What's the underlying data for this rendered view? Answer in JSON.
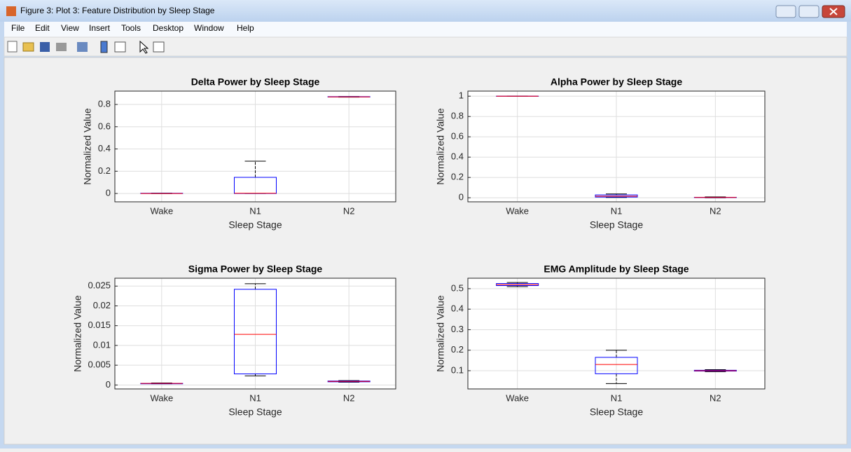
{
  "window": {
    "title": "Figure 3: Plot 3: Feature Distribution by Sleep Stage",
    "menu": [
      "File",
      "Edit",
      "View",
      "Insert",
      "Tools",
      "Desktop",
      "Window",
      "Help"
    ]
  },
  "chart_data": [
    {
      "type": "box",
      "title": "Delta Power by Sleep Stage",
      "xlabel": "Sleep Stage",
      "ylabel": "Normalized Value",
      "categories": [
        "Wake",
        "N1",
        "N2"
      ],
      "boxes": [
        {
          "min": 0,
          "q1": 0,
          "median": 0,
          "q3": 0.002,
          "max": 0.003
        },
        {
          "min": 0,
          "q1": 0,
          "median": 0.002,
          "q3": 0.145,
          "max": 0.29
        },
        {
          "min": 0.866,
          "q1": 0.867,
          "median": 0.868,
          "q3": 0.87,
          "max": 0.871
        }
      ],
      "ylim": [
        -0.075,
        0.92
      ],
      "yticks": [
        0,
        0.2,
        0.4,
        0.6,
        0.8
      ],
      "grid": true,
      "box_color": "#0000ff",
      "median_color": "#ff0000",
      "whisker_color": "#000000"
    },
    {
      "type": "box",
      "title": "Alpha Power by Sleep Stage",
      "xlabel": "Sleep Stage",
      "ylabel": "Normalized Value",
      "categories": [
        "Wake",
        "N1",
        "N2"
      ],
      "boxes": [
        {
          "min": 0.998,
          "q1": 0.999,
          "median": 1,
          "q3": 1,
          "max": 1
        },
        {
          "min": 0.003,
          "q1": 0.007,
          "median": 0.015,
          "q3": 0.028,
          "max": 0.038
        },
        {
          "min": 0,
          "q1": 0.002,
          "median": 0.003,
          "q3": 0.004,
          "max": 0.008
        }
      ],
      "ylim": [
        -0.04,
        1.05
      ],
      "yticks": [
        0,
        0.2,
        0.4,
        0.6,
        0.8,
        1
      ],
      "grid": true,
      "box_color": "#0000ff",
      "median_color": "#ff0000",
      "whisker_color": "#000000"
    },
    {
      "type": "box",
      "title": "Sigma Power by Sleep Stage",
      "xlabel": "Sleep Stage",
      "ylabel": "Normalized Value",
      "categories": [
        "Wake",
        "N1",
        "N2"
      ],
      "boxes": [
        {
          "min": 0.0003,
          "q1": 0.0003,
          "median": 0.0004,
          "q3": 0.0004,
          "max": 0.0005
        },
        {
          "min": 0.0023,
          "q1": 0.0028,
          "median": 0.0128,
          "q3": 0.0242,
          "max": 0.0256
        },
        {
          "min": 0.0007,
          "q1": 0.0008,
          "median": 0.0009,
          "q3": 0.001,
          "max": 0.0011
        }
      ],
      "ylim": [
        -0.001,
        0.027
      ],
      "yticks": [
        0,
        0.005,
        0.01,
        0.015,
        0.02,
        0.025
      ],
      "grid": true,
      "box_color": "#0000ff",
      "median_color": "#ff0000",
      "whisker_color": "#000000"
    },
    {
      "type": "box",
      "title": "EMG Amplitude by Sleep Stage",
      "xlabel": "Sleep Stage",
      "ylabel": "Normalized Value",
      "categories": [
        "Wake",
        "N1",
        "N2"
      ],
      "boxes": [
        {
          "min": 0.51,
          "q1": 0.515,
          "median": 0.52,
          "q3": 0.525,
          "max": 0.53
        },
        {
          "min": 0.037,
          "q1": 0.085,
          "median": 0.13,
          "q3": 0.165,
          "max": 0.2
        },
        {
          "min": 0.095,
          "q1": 0.098,
          "median": 0.1,
          "q3": 0.102,
          "max": 0.105
        }
      ],
      "ylim": [
        0.011,
        0.551
      ],
      "yticks": [
        0.1,
        0.2,
        0.3,
        0.4,
        0.5
      ],
      "grid": true,
      "box_color": "#0000ff",
      "median_color": "#ff0000",
      "whisker_color": "#000000"
    }
  ]
}
